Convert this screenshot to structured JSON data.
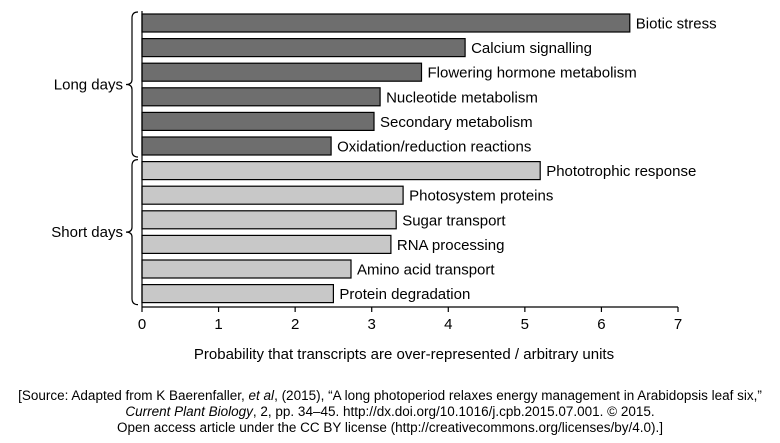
{
  "chart_data": {
    "type": "bar",
    "orientation": "horizontal",
    "xlabel": "Probability that transcripts are over-represented / arbitrary units",
    "xlim": [
      0,
      7
    ],
    "xticks": [
      0,
      1,
      2,
      3,
      4,
      5,
      6,
      7
    ],
    "grid": false,
    "groups": [
      {
        "name": "Long days",
        "color": "#6e6e6e",
        "categories": [
          "Biotic stress",
          "Calcium signalling",
          "Flowering hormone metabolism",
          "Nucleotide metabolism",
          "Secondary metabolism",
          "Oxidation/reduction reactions"
        ],
        "values": [
          6.37,
          4.22,
          3.65,
          3.11,
          3.03,
          2.47
        ]
      },
      {
        "name": "Short days",
        "color": "#c8c8c8",
        "categories": [
          "Phototrophic response",
          "Photosystem proteins",
          "Sugar transport",
          "RNA processing",
          "Amino acid transport",
          "Protein degradation"
        ],
        "values": [
          5.2,
          3.41,
          3.32,
          3.25,
          2.73,
          2.5
        ]
      }
    ]
  },
  "source": {
    "line1": "[Source: Adapted from K Baerenfaller, ",
    "line1_em": "et al",
    "line1_end": ", (2015), “A long photoperiod relaxes energy management in Arabidopsis leaf six,”",
    "line2_em": "Current Plant Biology",
    "line2_end": ", 2, pp. 34–45. http://dx.doi.org/10.1016/j.cpb.2015.07.001. © 2015.",
    "line3": "Open access article under the CC BY license (http://creativecommons.org/licenses/by/4.0).]"
  }
}
